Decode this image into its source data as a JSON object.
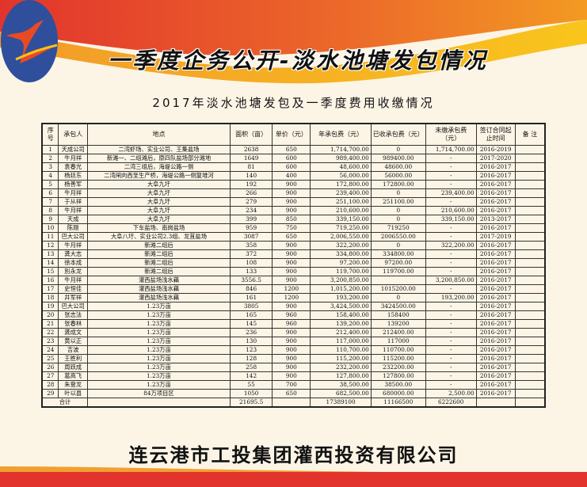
{
  "header": {
    "title": "一季度企务公开-淡水池塘发包情况",
    "subtitle": "2017年淡水池塘发包及一季度费用收缴情况"
  },
  "colors": {
    "red": "#e2342c",
    "orange": "#f08a24",
    "yellow": "#f7c21c",
    "logo_blue": "#2f4f9c",
    "background": "#fcf5e6"
  },
  "table": {
    "columns": [
      "序号",
      "承包人",
      "地点",
      "面积（亩）",
      "单价（元）",
      "年承包费（元）",
      "已收承包费（元）",
      "未缴承包费（元）",
      "签订合同起止时间",
      "备 注"
    ],
    "rows": [
      [
        "1",
        "天成公司",
        "二湾虾场、实业公司、王集盐场",
        "2638",
        "650",
        "1,714,700.00",
        "0",
        "1,714,700.00",
        "2016-2019",
        ""
      ],
      [
        "2",
        "牛月祥",
        "新滩一、二组滩后，原四队盐场部分滩地",
        "1649",
        "600",
        "989,400.00",
        "989400.00",
        "-",
        "2017-2020",
        ""
      ],
      [
        "3",
        "袁春光",
        "二湾三组后，海堤公路一侧",
        "81",
        "600",
        "48,600.00",
        "48600.00",
        "-",
        "2016-2017",
        ""
      ],
      [
        "4",
        "杨廷东",
        "二湾闸向西至生产桥，海堤公路一侧复堆河",
        "140",
        "400",
        "56,000.00",
        "56000.00",
        "-",
        "2016-2017",
        ""
      ],
      [
        "5",
        "杨善军",
        "大阜九圩",
        "192",
        "900",
        "172,800.00",
        "172800.00",
        "-",
        "2016-2017",
        ""
      ],
      [
        "6",
        "牛月祥",
        "大阜九圩",
        "266",
        "900",
        "239,400.00",
        "0",
        "239,400.00",
        "2016-2017",
        ""
      ],
      [
        "7",
        "于从祥",
        "大阜九圩",
        "279",
        "900",
        "251,100.00",
        "251100.00",
        "-",
        "2016-2017",
        ""
      ],
      [
        "8",
        "牛月祥",
        "大阜九圩",
        "234",
        "900",
        "210,600.00",
        "0",
        "210,600.00",
        "2016-2017",
        ""
      ],
      [
        "9",
        "天成",
        "大阜九圩",
        "399",
        "850",
        "339,150.00",
        "0",
        "339,150.00",
        "2013-2017",
        ""
      ],
      [
        "10",
        "陈刚",
        "下车盐场、南岗盐场",
        "959",
        "750",
        "719,250.00",
        "719250",
        "-",
        "2016-2017",
        ""
      ],
      [
        "11",
        "巴大公司",
        "大阜八圩、实业公司2.3组、龙苴盐场",
        "3087",
        "650",
        "2,006,550.00",
        "2006550.00",
        "-",
        "2017-2019",
        ""
      ],
      [
        "12",
        "牛月祥",
        "新滩二组后",
        "358",
        "900",
        "322,200.00",
        "0",
        "322,200.00",
        "2016-2017",
        ""
      ],
      [
        "13",
        "龚大志",
        "新滩二组后",
        "372",
        "900",
        "334,800.00",
        "334800.00",
        "-",
        "2016-2017",
        ""
      ],
      [
        "14",
        "徐本成",
        "新滩二组后",
        "108",
        "900",
        "97,200.00",
        "97200.00",
        "-",
        "2016-2017",
        ""
      ],
      [
        "15",
        "別永龙",
        "新滩二组后",
        "133",
        "900",
        "119,700.00",
        "119700.00",
        "-",
        "2016-2017",
        ""
      ],
      [
        "16",
        "牛月祥",
        "灌西盐场浅水藕",
        "3556.5",
        "900",
        "3,200,850.00",
        "",
        "3,200,850.00",
        "2016-2017",
        ""
      ],
      [
        "17",
        "史恒佳",
        "灌西盐场浅水藕",
        "846",
        "1200",
        "1,015,200.00",
        "1015200.00",
        "-",
        "2016-2017",
        ""
      ],
      [
        "18",
        "井军祥",
        "灌西盐场浅水藕",
        "161",
        "1200",
        "193,200.00",
        "0",
        "193,200.00",
        "2016-2017",
        ""
      ],
      [
        "19",
        "巴大公司",
        "1.23万亩",
        "3805",
        "900",
        "3,424,500.00",
        "3424500.00",
        "-",
        "2016-2017",
        ""
      ],
      [
        "20",
        "张志法",
        "1.23万亩",
        "165",
        "960",
        "158,400.00",
        "158400",
        "-",
        "2016-2017",
        ""
      ],
      [
        "21",
        "张春林",
        "1.23万亩",
        "145",
        "960",
        "139,200.00",
        "139200",
        "-",
        "2016-2017",
        ""
      ],
      [
        "22",
        "龚成文",
        "1.23万亩",
        "236",
        "900",
        "212,400.00",
        "212400.00",
        "-",
        "2016-2017",
        ""
      ],
      [
        "23",
        "黄以正",
        "1.23万亩",
        "130",
        "900",
        "117,000.00",
        "117000",
        "-",
        "2016-2017",
        ""
      ],
      [
        "24",
        "吉波",
        "1.23万亩",
        "123",
        "900",
        "110,700.00",
        "110700.00",
        "-",
        "2016-2017",
        ""
      ],
      [
        "25",
        "王胜利",
        "1.23万亩",
        "128",
        "900",
        "115,200.00",
        "115200.00",
        "-",
        "2016-2017",
        ""
      ],
      [
        "26",
        "周跃成",
        "1.23万亩",
        "258",
        "900",
        "232,200.00",
        "232200.00",
        "-",
        "2016-2017",
        ""
      ],
      [
        "27",
        "葛高飞",
        "1.23万亩",
        "142",
        "900",
        "127,800.00",
        "127800.00",
        "-",
        "2016-2017",
        ""
      ],
      [
        "28",
        "朱登龙",
        "1.23万亩",
        "55",
        "700",
        "38,500.00",
        "38500.00",
        "-",
        "2016-2017",
        ""
      ],
      [
        "29",
        "叶以县",
        "84万项目区",
        "1050",
        "650",
        "682,500.00",
        "680000.00",
        "2,500.00",
        "2016-2017",
        ""
      ]
    ],
    "total": {
      "label": "合计",
      "area": "21695.5",
      "annual_fee": "17389100",
      "paid": "11166500",
      "unpaid": "6222600"
    }
  },
  "footer": {
    "company": "连云港市工投集团灌西投资有限公司"
  }
}
